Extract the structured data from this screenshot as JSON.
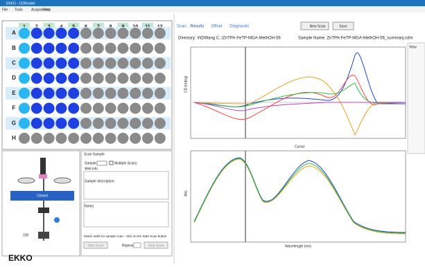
{
  "window": {
    "title": "EKKO - CDReader",
    "menu": [
      "File",
      "Tools",
      "Acquisitions",
      "Help"
    ]
  },
  "plate": {
    "columns": [
      "1",
      "2",
      "3",
      "4",
      "5",
      "6",
      "7",
      "8",
      "9",
      "10",
      "11",
      "12"
    ],
    "rows": [
      "A",
      "B",
      "C",
      "D",
      "E",
      "F",
      "G",
      "H"
    ],
    "well_colors": {
      "cyan": "#2ab6f0",
      "blue": "#1f3fe0",
      "gray": "#8a8a8a"
    },
    "wells": [
      [
        "cyan",
        "blue",
        "blue",
        "blue",
        "blue",
        "gray",
        "gray",
        "gray",
        "gray",
        "gray",
        "gray",
        "gray"
      ],
      [
        "cyan",
        "blue",
        "blue",
        "blue",
        "blue",
        "gray",
        "gray",
        "gray",
        "gray",
        "gray",
        "gray",
        "gray"
      ],
      [
        "cyan",
        "blue",
        "blue",
        "blue",
        "blue",
        "gray",
        "gray",
        "gray",
        "gray",
        "gray",
        "gray",
        "gray"
      ],
      [
        "cyan",
        "blue",
        "blue",
        "blue",
        "blue",
        "gray",
        "gray",
        "gray",
        "gray",
        "gray",
        "gray",
        "gray"
      ],
      [
        "cyan",
        "blue",
        "blue",
        "blue",
        "blue",
        "gray",
        "gray",
        "gray",
        "gray",
        "gray",
        "gray",
        "gray"
      ],
      [
        "cyan",
        "blue",
        "blue",
        "blue",
        "blue",
        "gray",
        "gray",
        "gray",
        "gray",
        "gray",
        "gray",
        "gray"
      ],
      [
        "cyan",
        "blue",
        "blue",
        "blue",
        "blue",
        "gray",
        "gray",
        "gray",
        "gray",
        "gray",
        "gray",
        "gray"
      ],
      [
        "gray",
        "gray",
        "gray",
        "gray",
        "gray",
        "gray",
        "gray",
        "gray",
        "gray",
        "gray",
        "gray",
        "gray"
      ]
    ]
  },
  "instrument": {
    "button": "Closed",
    "value": "100"
  },
  "scan_panel": {
    "title": "Scan Sample",
    "sample_label": "Sample",
    "multiple": "Multiple Scans",
    "well_info": "Well info",
    "description": "Sample description:",
    "notes": "Notes:",
    "hint": "Select wells for sample scan - click on the Start Scan button",
    "start": "Start Scan",
    "repeat": "Repeat",
    "stop": "Stop Scan"
  },
  "logo": "EKKO",
  "results": {
    "tabs": [
      "Scan",
      "Results",
      "Offset",
      "Diagnostic"
    ],
    "buttons": [
      "New Scan",
      "Save"
    ],
    "directory": "Directory: \\NDWang C..\\ZnTPA-FeTP-MGA-MethOH-56",
    "sample_name": "Sample Name: ZnTPA-FeTP-MGA-MethOH-56_summary.cdm",
    "cd_axis": "CD (mdeg)",
    "abs_axis": "Abs",
    "x_axis": "Wavelength (nm)",
    "cursor": "Cursor",
    "view": "View"
  }
}
